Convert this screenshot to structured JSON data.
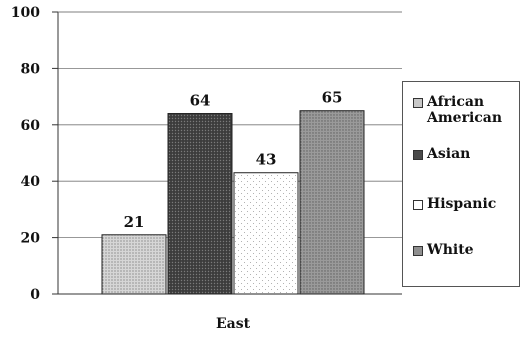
{
  "chart_data": {
    "type": "bar",
    "categories": [
      "East"
    ],
    "series": [
      {
        "name": "African American",
        "values": [
          21
        ],
        "color": "#c8c8c8",
        "pattern": "fine-dots"
      },
      {
        "name": "Asian",
        "values": [
          64
        ],
        "color": "#4a4a4a",
        "pattern": "dark-dots"
      },
      {
        "name": "Hispanic",
        "values": [
          43
        ],
        "color": "#ffffff",
        "pattern": "sparse-dots"
      },
      {
        "name": "White",
        "values": [
          65
        ],
        "color": "#8f8f8f",
        "pattern": "medium-dots"
      }
    ],
    "title": "",
    "xlabel": "",
    "ylabel": "",
    "ylim": [
      0,
      100
    ],
    "yticks": [
      0,
      20,
      40,
      60,
      80,
      100
    ],
    "grid": true,
    "legend_position": "right"
  },
  "legend": {
    "items": [
      {
        "line1": "African",
        "line2": "American"
      },
      {
        "line1": "Asian",
        "line2": ""
      },
      {
        "line1": "Hispanic",
        "line2": ""
      },
      {
        "line1": "White",
        "line2": ""
      }
    ]
  }
}
